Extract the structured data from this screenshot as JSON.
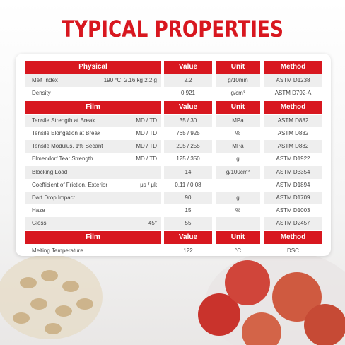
{
  "title": "TYPICAL PROPERTIES",
  "sections": [
    {
      "header": [
        "Physical",
        "Value",
        "Unit",
        "Method"
      ],
      "rows": [
        {
          "property": "Melt Index",
          "condition": "190 °C, 2.16 kg 2.2 g",
          "value": "2.2",
          "unit": "g/10min",
          "method": "ASTM D1238"
        },
        {
          "property": "Density",
          "value": "0.921",
          "unit": "g/cm³",
          "method": "ASTM D792-A"
        }
      ]
    },
    {
      "header": [
        "Film",
        "Value",
        "Unit",
        "Method"
      ],
      "rows": [
        {
          "property": "Tensile Strength at Break",
          "condition": "MD / TD",
          "value": "35 / 30",
          "unit": "MPa",
          "method": "ASTM D882"
        },
        {
          "property": "Tensile Elongation at Break",
          "condition": "MD / TD",
          "value": "765 / 925",
          "unit": "%",
          "method": "ASTM D882"
        },
        {
          "property": "Tensile Modulus, 1% Secant",
          "condition": "MD / TD",
          "value": "205 / 255",
          "unit": "MPa",
          "method": "ASTM D882"
        },
        {
          "property": "Elmendorf Tear Strength",
          "condition": "MD / TD",
          "value": "125 / 350",
          "unit": "g",
          "method": "ASTM D1922"
        },
        {
          "property": "Blocking Load",
          "value": "14",
          "unit": "g/100cm²",
          "method": "ASTM D3354"
        },
        {
          "property": "Coefficient of Friction, Exterior",
          "condition": "μs / μk",
          "value": "0.11 / 0.08",
          "method": "ASTM D1894"
        },
        {
          "property": "Dart Drop Impact",
          "value": "90",
          "unit": "g",
          "method": "ASTM D1709"
        },
        {
          "property": "Haze",
          "value": "15",
          "unit": "%",
          "method": "ASTM D1003"
        },
        {
          "property": "Gloss",
          "condition": "45°",
          "value": "55",
          "method": "ASTM D2457"
        }
      ]
    },
    {
      "header": [
        "Film",
        "Value",
        "Unit",
        "Method"
      ],
      "rows": [
        {
          "property": "Melting Temperature",
          "value": "122",
          "unit": "°C",
          "method": "DSC"
        }
      ]
    }
  ]
}
